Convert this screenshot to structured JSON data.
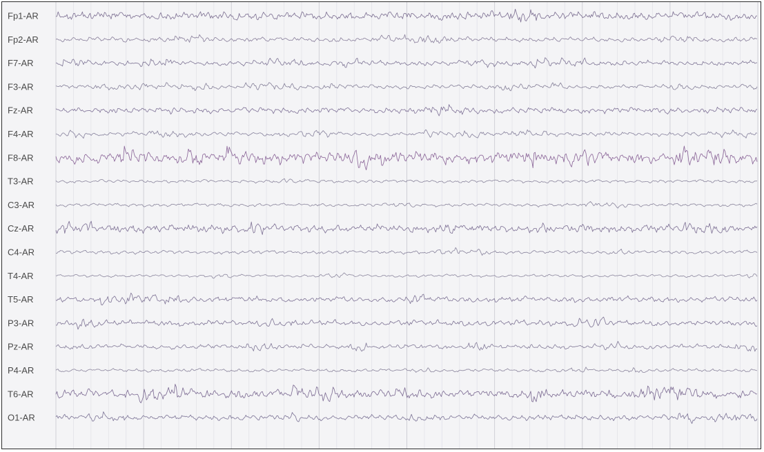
{
  "chart_data": {
    "type": "line",
    "channels": [
      {
        "label": "Fp1-AR",
        "amplitude": 4.5,
        "busy": 1.0,
        "color": "#6a5a82"
      },
      {
        "label": "Fp2-AR",
        "amplitude": 3.0,
        "busy": 0.8,
        "color": "#7a6f8e"
      },
      {
        "label": "F7-AR",
        "amplitude": 3.2,
        "busy": 0.8,
        "color": "#6e6488"
      },
      {
        "label": "F3-AR",
        "amplitude": 2.8,
        "busy": 0.7,
        "color": "#76708c"
      },
      {
        "label": "Fz-AR",
        "amplitude": 3.5,
        "busy": 0.9,
        "color": "#6f5f8a"
      },
      {
        "label": "F4-AR",
        "amplitude": 2.8,
        "busy": 0.7,
        "color": "#787290"
      },
      {
        "label": "F8-AR",
        "amplitude": 6.5,
        "busy": 1.0,
        "color": "#7a4f8a"
      },
      {
        "label": "T3-AR",
        "amplitude": 2.2,
        "busy": 0.6,
        "color": "#7e7892"
      },
      {
        "label": "C3-AR",
        "amplitude": 2.2,
        "busy": 0.6,
        "color": "#7d7791"
      },
      {
        "label": "Cz-AR",
        "amplitude": 4.5,
        "busy": 1.0,
        "color": "#6c5d86"
      },
      {
        "label": "C4-AR",
        "amplitude": 2.5,
        "busy": 0.6,
        "color": "#7a7490"
      },
      {
        "label": "T4-AR",
        "amplitude": 2.0,
        "busy": 0.5,
        "color": "#807a94"
      },
      {
        "label": "T5-AR",
        "amplitude": 3.5,
        "busy": 0.8,
        "color": "#6e6288"
      },
      {
        "label": "P3-AR",
        "amplitude": 3.5,
        "busy": 0.8,
        "color": "#6c6086"
      },
      {
        "label": "Pz-AR",
        "amplitude": 3.0,
        "busy": 0.8,
        "color": "#736a8c"
      },
      {
        "label": "P4-AR",
        "amplitude": 2.2,
        "busy": 0.6,
        "color": "#7c7690"
      },
      {
        "label": "T6-AR",
        "amplitude": 5.0,
        "busy": 1.0,
        "color": "#6a5684"
      },
      {
        "label": "O1-AR",
        "amplitude": 3.5,
        "busy": 0.8,
        "color": "#6b6188"
      }
    ],
    "grid": true,
    "vertical_divisions": 40
  }
}
